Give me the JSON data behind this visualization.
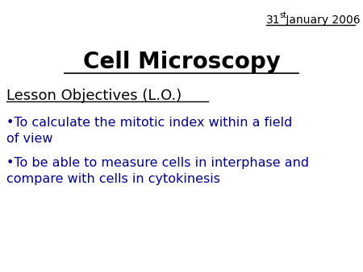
{
  "background_color": "#ffffff",
  "date_line": "31  January 2006",
  "date_superscript": "st",
  "title": "Cell Microscopy",
  "subtitle": "Lesson Objectives (L.O.)",
  "bullet1_line1": "•To calculate the mitotic index within a field",
  "bullet1_line2": "of view",
  "bullet2_line1": "•To be able to measure cells in interphase and",
  "bullet2_line2": "compare with cells in cytokinesis",
  "title_color": "#000000",
  "subtitle_color": "#000000",
  "body_color": "#00008B",
  "date_color": "#000000",
  "title_fontsize": 20,
  "subtitle_fontsize": 13,
  "body_fontsize": 11.5,
  "date_fontsize": 10
}
